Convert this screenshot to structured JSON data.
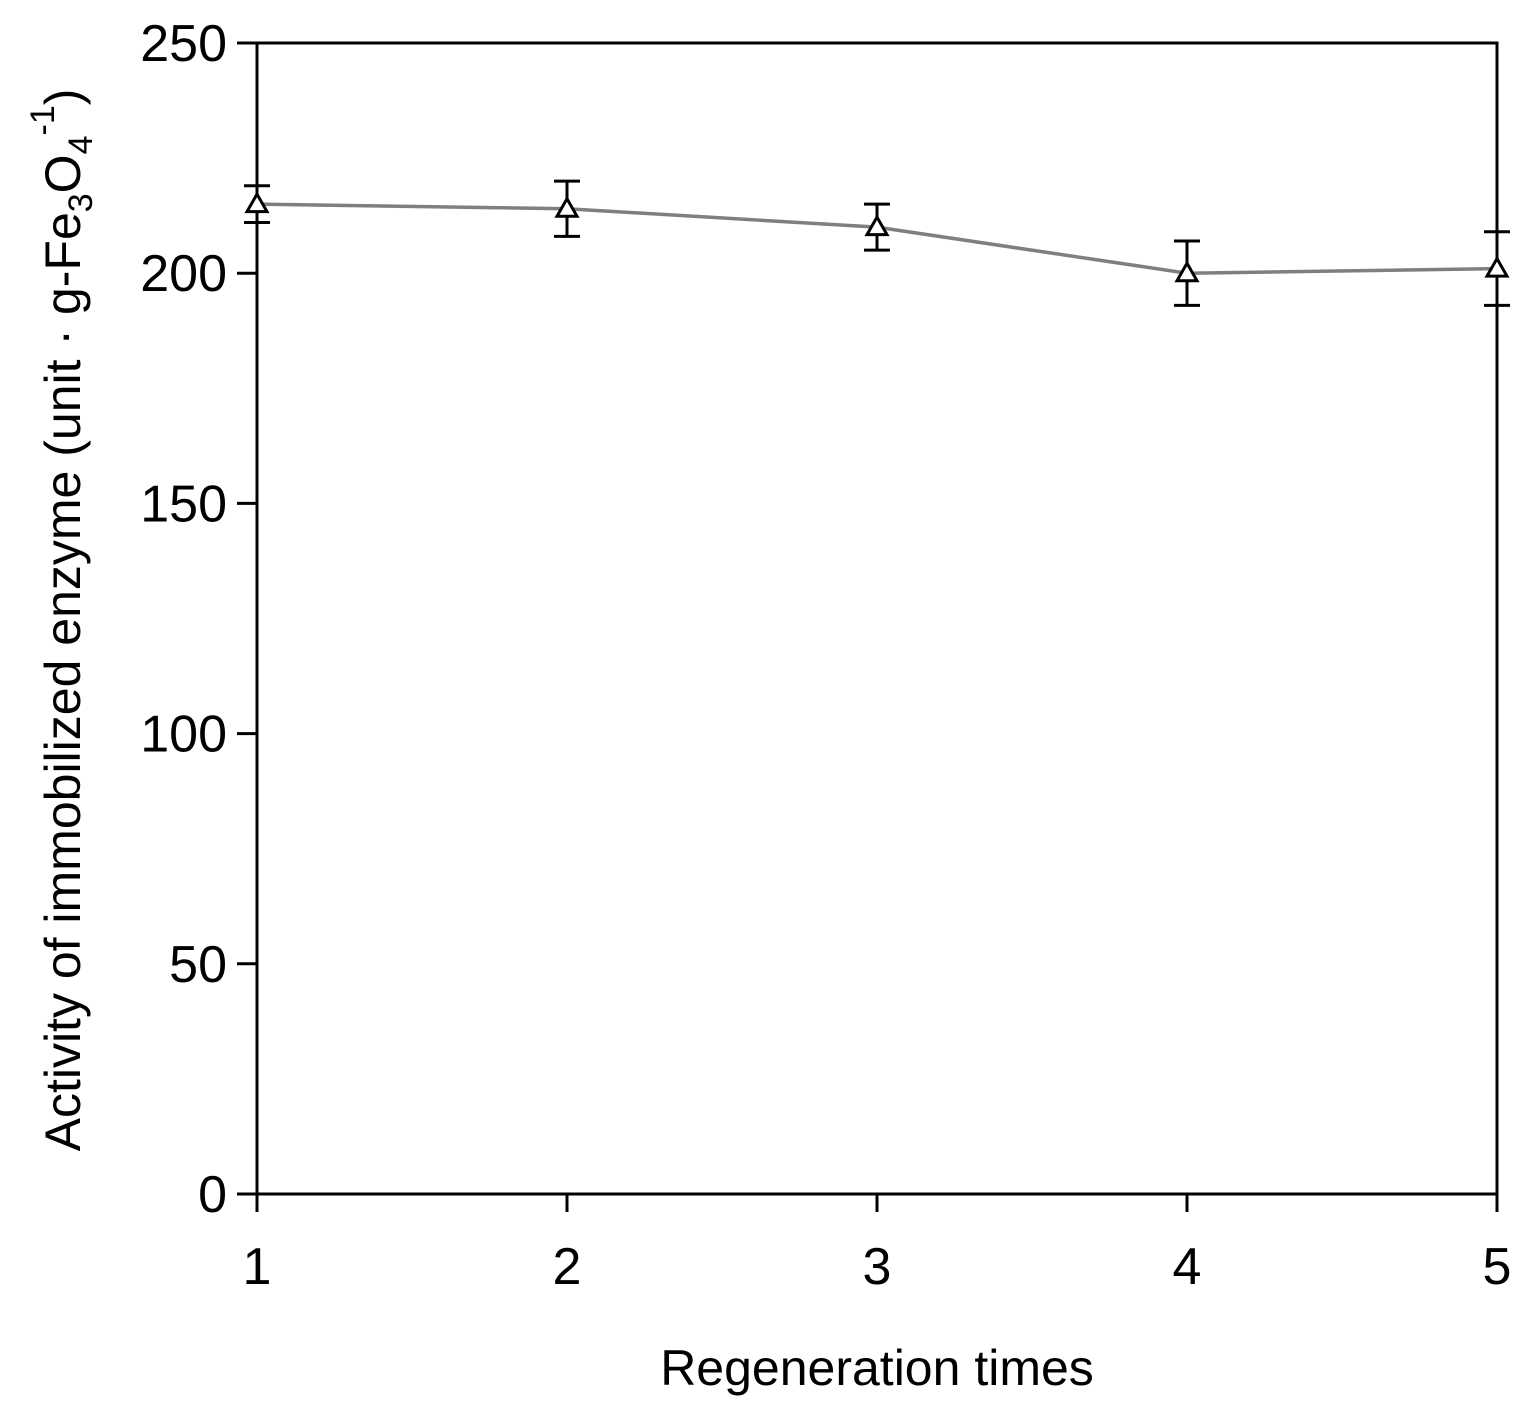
{
  "chart_data": {
    "type": "line",
    "xlabel": "Regeneration times",
    "ylabel_parts": {
      "main": "Activity of immobilized enzyme (unit · g-Fe",
      "sub1": "3",
      "mid": "O",
      "sub2": "4",
      "sup": "-1",
      "close": ")"
    },
    "x": [
      1,
      2,
      3,
      4,
      5
    ],
    "xlim": [
      1,
      5
    ],
    "ylim": [
      0,
      250
    ],
    "xticks": [
      "1",
      "2",
      "3",
      "4",
      "5"
    ],
    "yticks": [
      0,
      50,
      100,
      150,
      200,
      250
    ],
    "yticklabels": [
      "0",
      "50",
      "100",
      "150",
      "200",
      "250"
    ],
    "grid": false,
    "series": [
      {
        "values": [
          215,
          214,
          210,
          200,
          201
        ],
        "errors": [
          4,
          6,
          5,
          7,
          8
        ],
        "marker": "open-triangle",
        "line_color": "#7f7f7f"
      }
    ]
  }
}
